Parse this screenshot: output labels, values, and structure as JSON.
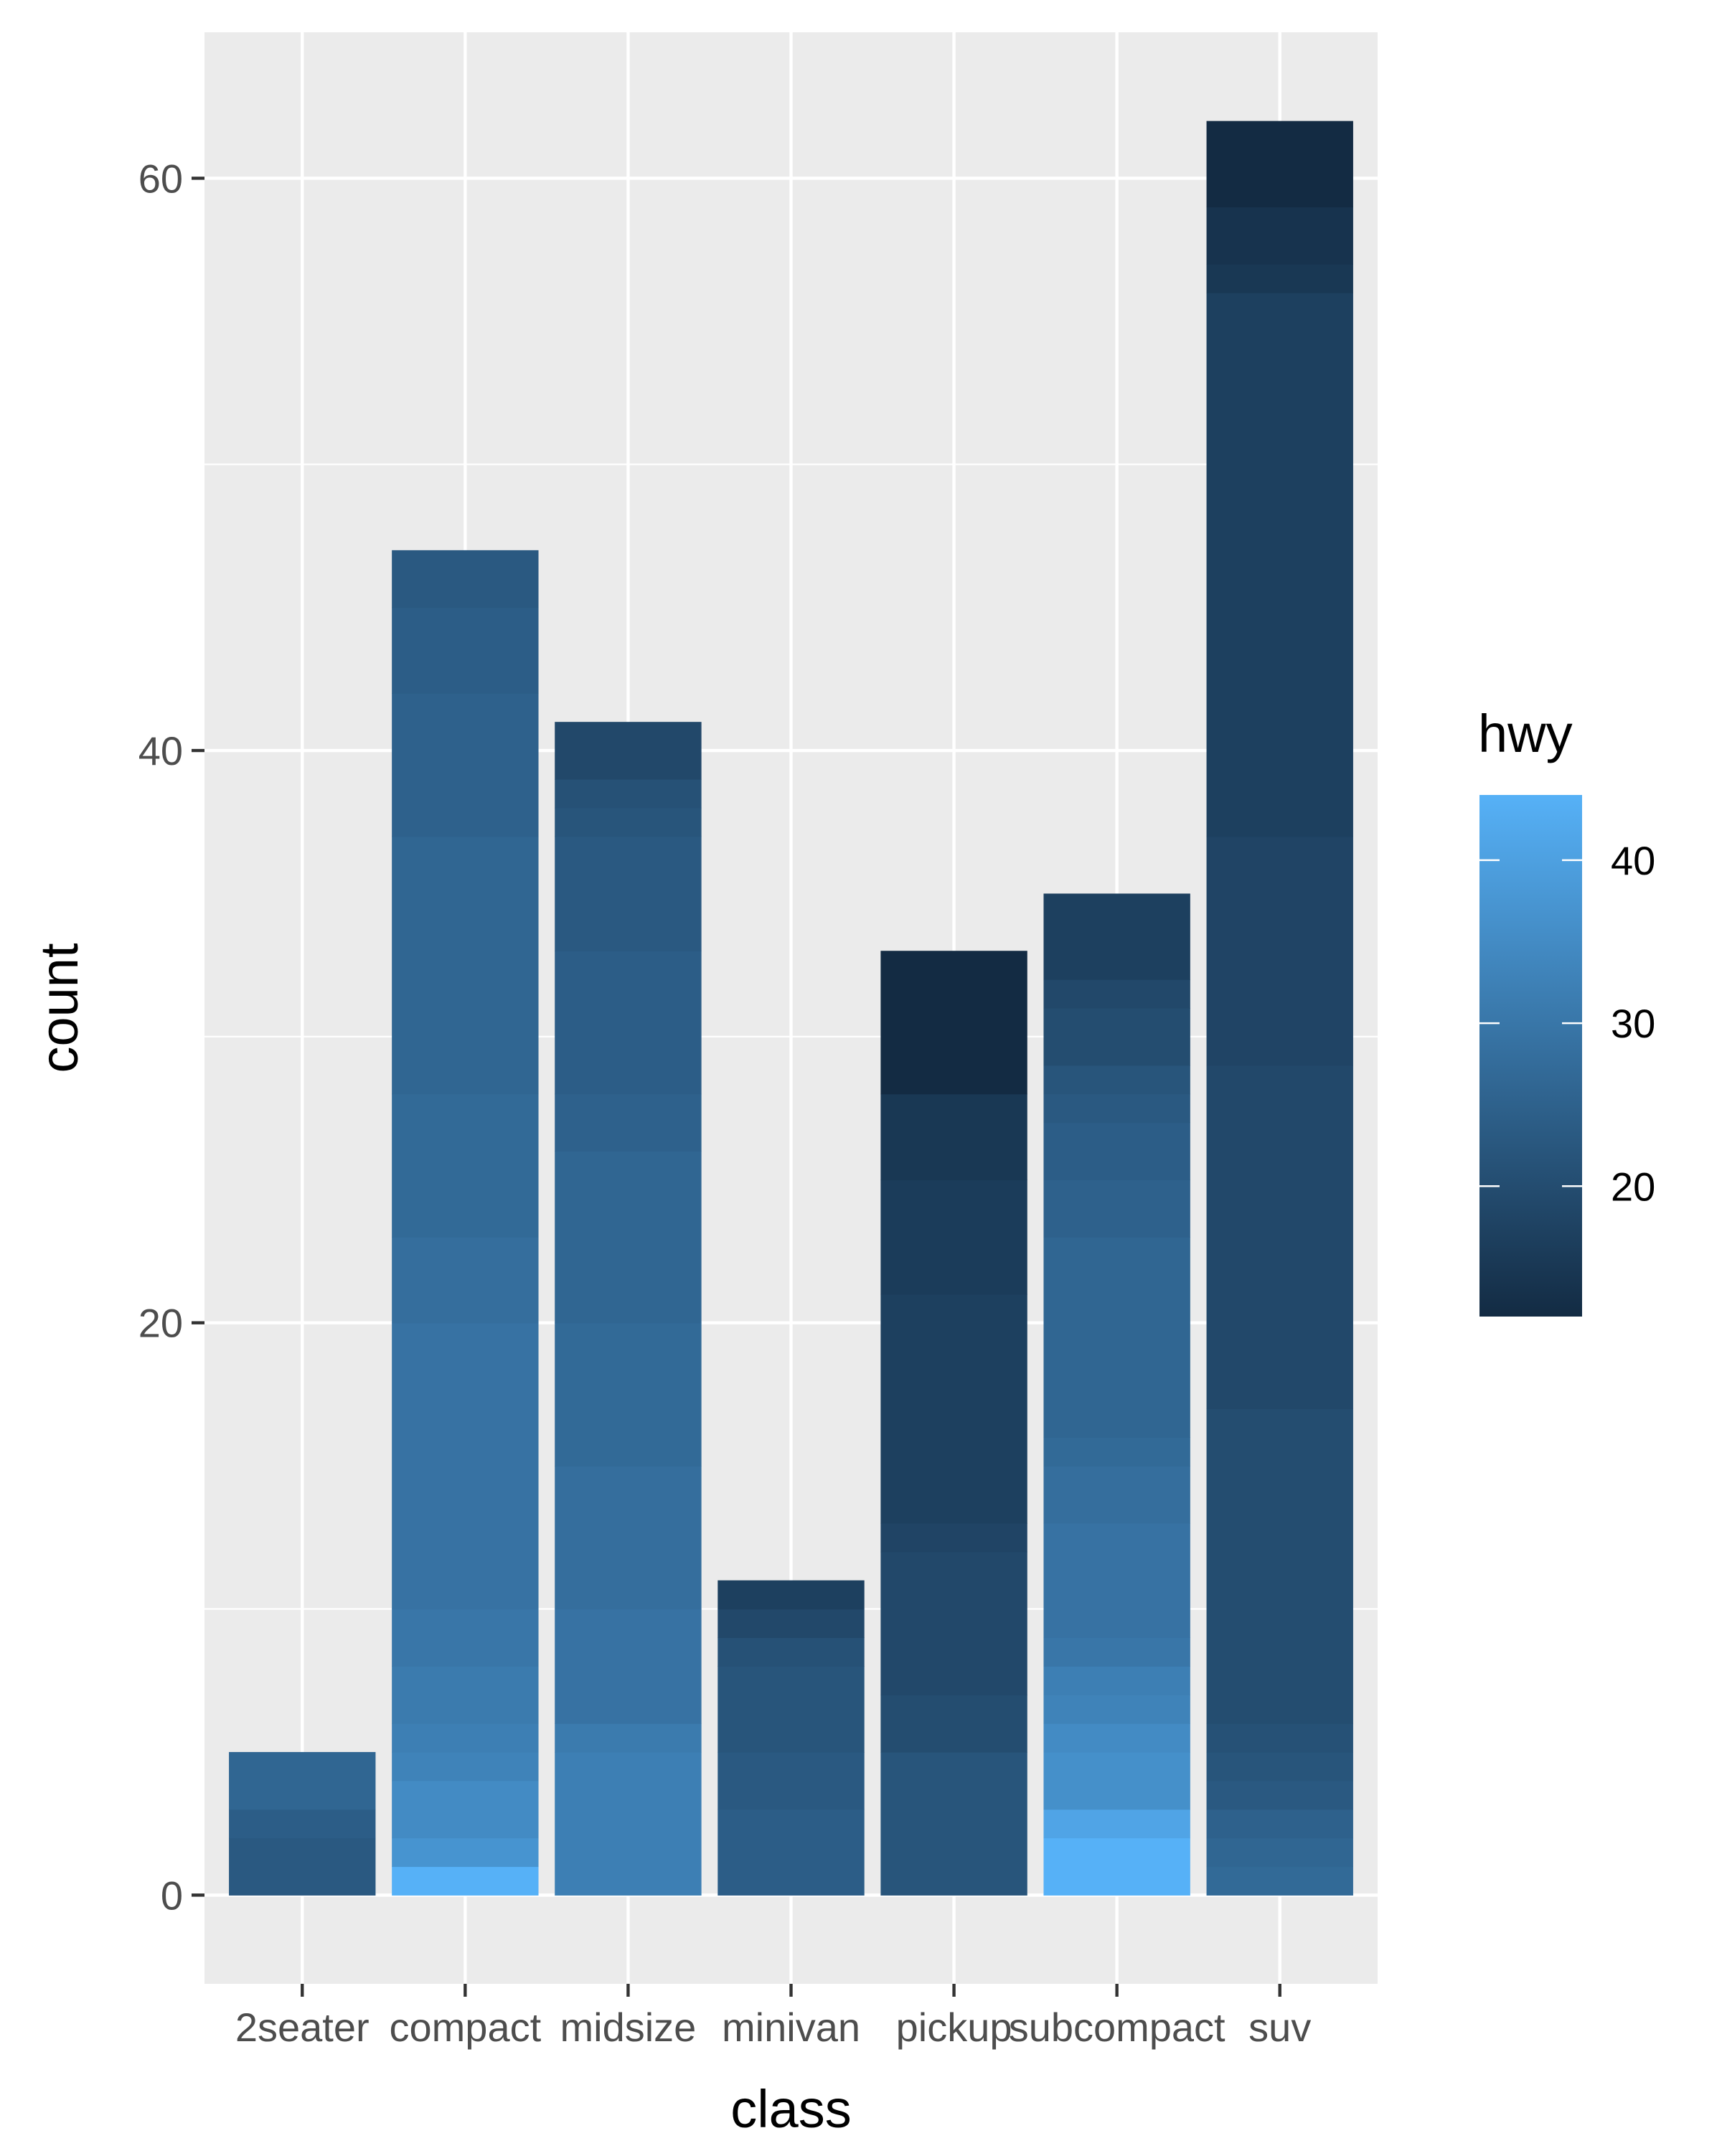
{
  "chart_data": {
    "type": "bar",
    "stacked": true,
    "xlabel": "class",
    "ylabel": "count",
    "categories": [
      "2seater",
      "compact",
      "midsize",
      "minivan",
      "pickup",
      "subcompact",
      "suv"
    ],
    "values": [
      5,
      47,
      41,
      11,
      33,
      35,
      62
    ],
    "ylim": [
      -3.1,
      65.1
    ],
    "yticks": [
      0,
      20,
      40,
      60
    ],
    "ytick_labels": [
      "0",
      "20",
      "40",
      "60"
    ],
    "grid": true,
    "panel_background": "#ebebeb",
    "grid_color": "#ffffff",
    "legend": {
      "title": "hwy",
      "position": "right",
      "min": 12,
      "max": 44,
      "ticks": [
        20,
        30,
        40
      ],
      "tick_labels": [
        "20",
        "30",
        "40"
      ],
      "low_color": "#132b43",
      "high_color": "#56b1f7"
    },
    "segments": {
      "2seater": [
        [
          23,
          2
        ],
        [
          24,
          1
        ],
        [
          26,
          2
        ]
      ],
      "compact": [
        [
          44,
          1
        ],
        [
          37,
          1
        ],
        [
          35,
          2
        ],
        [
          33,
          1
        ],
        [
          32,
          1
        ],
        [
          31,
          2
        ],
        [
          30,
          2
        ],
        [
          29,
          10
        ],
        [
          28,
          3
        ],
        [
          27,
          5
        ],
        [
          26,
          9
        ],
        [
          25,
          5
        ],
        [
          24,
          3
        ],
        [
          23,
          2
        ]
      ],
      "midsize": [
        [
          32,
          5
        ],
        [
          31,
          1
        ],
        [
          29,
          4
        ],
        [
          28,
          5
        ],
        [
          27,
          5
        ],
        [
          26,
          6
        ],
        [
          25,
          2
        ],
        [
          24,
          5
        ],
        [
          23,
          4
        ],
        [
          22,
          1
        ],
        [
          21,
          1
        ],
        [
          19,
          2
        ]
      ],
      "minivan": [
        [
          24,
          3
        ],
        [
          23,
          2
        ],
        [
          22,
          3
        ],
        [
          21,
          1
        ],
        [
          19,
          1
        ],
        [
          17,
          1
        ]
      ],
      "pickup": [
        [
          22,
          5
        ],
        [
          20,
          2
        ],
        [
          19,
          5
        ],
        [
          18,
          1
        ],
        [
          17,
          8
        ],
        [
          16,
          4
        ],
        [
          15,
          3
        ],
        [
          12,
          5
        ]
      ],
      "subcompact": [
        [
          44,
          2
        ],
        [
          41,
          1
        ],
        [
          36,
          2
        ],
        [
          35,
          1
        ],
        [
          33,
          1
        ],
        [
          32,
          1
        ],
        [
          30,
          1
        ],
        [
          29,
          4
        ],
        [
          28,
          2
        ],
        [
          27,
          1
        ],
        [
          26,
          7
        ],
        [
          25,
          2
        ],
        [
          24,
          2
        ],
        [
          23,
          1
        ],
        [
          22,
          1
        ],
        [
          20,
          2
        ],
        [
          19,
          1
        ],
        [
          17,
          3
        ]
      ],
      "suv": [
        [
          27,
          1
        ],
        [
          26,
          1
        ],
        [
          25,
          1
        ],
        [
          23,
          1
        ],
        [
          22,
          1
        ],
        [
          21,
          1
        ],
        [
          20,
          11
        ],
        [
          19,
          12
        ],
        [
          18,
          8
        ],
        [
          17,
          19
        ],
        [
          15,
          1
        ],
        [
          14,
          2
        ],
        [
          12,
          3
        ]
      ]
    }
  }
}
